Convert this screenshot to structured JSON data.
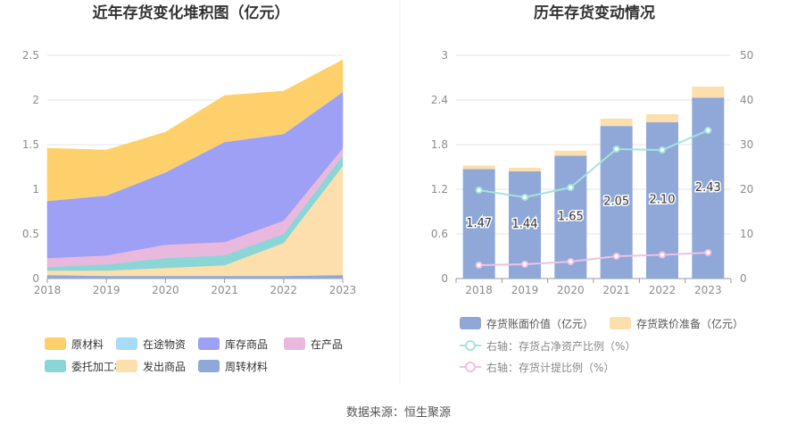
{
  "source_text": "数据来源：恒生聚源",
  "chart_data": [
    {
      "type": "area",
      "stacked": true,
      "title": "近年存货变化堆积图（亿元）",
      "x": [
        "2018",
        "2019",
        "2020",
        "2021",
        "2022",
        "2023"
      ],
      "ylim": [
        0,
        2.5
      ],
      "yticks": [
        "0",
        "0.5",
        "1",
        "1.5",
        "2",
        "2.5"
      ],
      "series": [
        {
          "name": "周转材料",
          "color": "#8fa8d8",
          "values": [
            0.04,
            0.03,
            0.03,
            0.03,
            0.03,
            0.04
          ]
        },
        {
          "name": "发出商品",
          "color": "#fddfad",
          "values": [
            0.05,
            0.06,
            0.09,
            0.12,
            0.37,
            1.22
          ]
        },
        {
          "name": "委托加工材料",
          "color": "#8ad6d6",
          "values": [
            0.04,
            0.07,
            0.11,
            0.11,
            0.1,
            0.12
          ]
        },
        {
          "name": "在产品",
          "color": "#e9b8dd",
          "values": [
            0.1,
            0.1,
            0.15,
            0.15,
            0.15,
            0.08
          ]
        },
        {
          "name": "库存商品",
          "color": "#9da0f5",
          "values": [
            0.64,
            0.67,
            0.81,
            1.12,
            0.97,
            0.63
          ]
        },
        {
          "name": "在途物资",
          "color": "#a6dcf7",
          "values": [
            0.0,
            0.0,
            0.0,
            0.0,
            0.0,
            0.0
          ]
        },
        {
          "name": "原材料",
          "color": "#fdd06b",
          "values": [
            0.59,
            0.51,
            0.45,
            0.52,
            0.48,
            0.36
          ]
        }
      ],
      "legend_order": [
        "原材料",
        "在途物资",
        "库存商品",
        "在产品",
        "委托加工材料",
        "发出商品",
        "周转材料"
      ],
      "legend_position": "bottom"
    },
    {
      "type": "bar",
      "title": "历年存货变动情况",
      "categories": [
        "2018",
        "2019",
        "2020",
        "2021",
        "2022",
        "2023"
      ],
      "left_axis": {
        "ylim": [
          0,
          3
        ],
        "ticks": [
          "0",
          "0.6",
          "1.2",
          "1.8",
          "2.4",
          "3"
        ]
      },
      "right_axis": {
        "ylim": [
          0,
          50
        ],
        "ticks": [
          "0",
          "10",
          "20",
          "30",
          "40",
          "50"
        ]
      },
      "bar_series": [
        {
          "name": "存货账面价值（亿元）",
          "color": "#8fa8d8",
          "values": [
            1.47,
            1.44,
            1.65,
            2.05,
            2.1,
            2.43
          ],
          "labels": [
            "1.47",
            "1.44",
            "1.65",
            "2.05",
            "2.10",
            "2.43"
          ]
        },
        {
          "name": "存货跌价准备（亿元）",
          "color": "#fddfad",
          "values": [
            0.05,
            0.05,
            0.07,
            0.1,
            0.11,
            0.15
          ]
        }
      ],
      "line_series": [
        {
          "name": "右轴：存货占净资产比例（%）",
          "color": "#a6e3dc",
          "values": [
            19.8,
            18.2,
            20.4,
            29.0,
            28.8,
            33.2
          ]
        },
        {
          "name": "右轴：存货计提比例（%）",
          "color": "#efc1e3",
          "values": [
            3.0,
            3.2,
            3.8,
            5.0,
            5.3,
            5.8
          ]
        }
      ],
      "legend_position": "bottom"
    }
  ]
}
